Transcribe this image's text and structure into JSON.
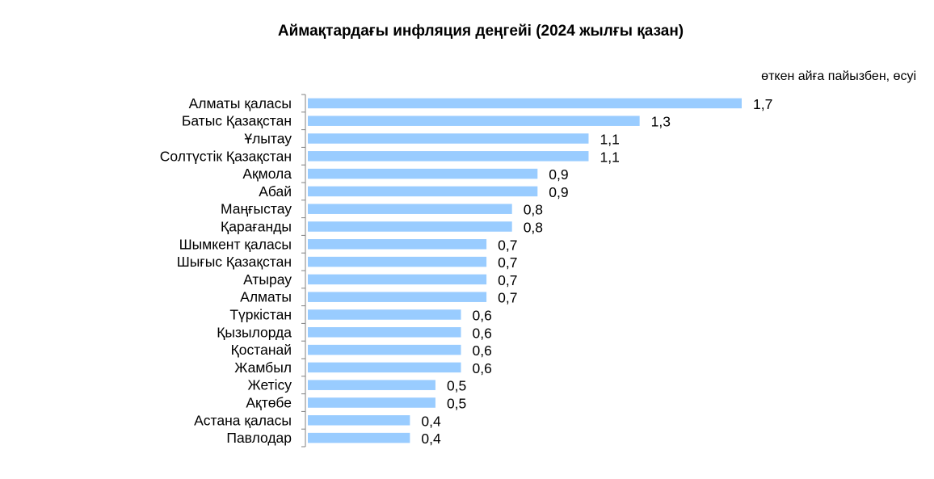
{
  "chart_data": {
    "type": "bar",
    "orientation": "horizontal",
    "title": "Аймақтардағы инфляция деңгейі (2024 жылғы қазан)",
    "unit_note": "өткен айға пайызбен, өсуі",
    "categories": [
      "Алматы қаласы",
      "Батыс Қазақстан",
      "Ұлытау",
      "Солтүстік Қазақстан",
      "Ақмола",
      "Абай",
      "Маңғыстау",
      "Қарағанды",
      "Шымкент қаласы",
      "Шығыс Қазақстан",
      "Атырау",
      "Алматы",
      "Түркістан",
      "Қызылорда",
      "Қостанай",
      "Жамбыл",
      "Жетісу",
      "Ақтөбе",
      "Астана қаласы",
      "Павлодар"
    ],
    "values": [
      1.7,
      1.3,
      1.1,
      1.1,
      0.9,
      0.9,
      0.8,
      0.8,
      0.7,
      0.7,
      0.7,
      0.7,
      0.6,
      0.6,
      0.6,
      0.6,
      0.5,
      0.5,
      0.4,
      0.4
    ],
    "value_labels": [
      "1,7",
      "1,3",
      "1,1",
      "1,1",
      "0,9",
      "0,9",
      "0,8",
      "0,8",
      "0,7",
      "0,7",
      "0,7",
      "0,7",
      "0,6",
      "0,6",
      "0,6",
      "0,6",
      "0,5",
      "0,5",
      "0,4",
      "0,4"
    ],
    "bar_color": "#99CCFF",
    "axis_color": "#808080",
    "xlim": [
      0,
      1.7
    ],
    "grid": false,
    "legend": "none"
  }
}
